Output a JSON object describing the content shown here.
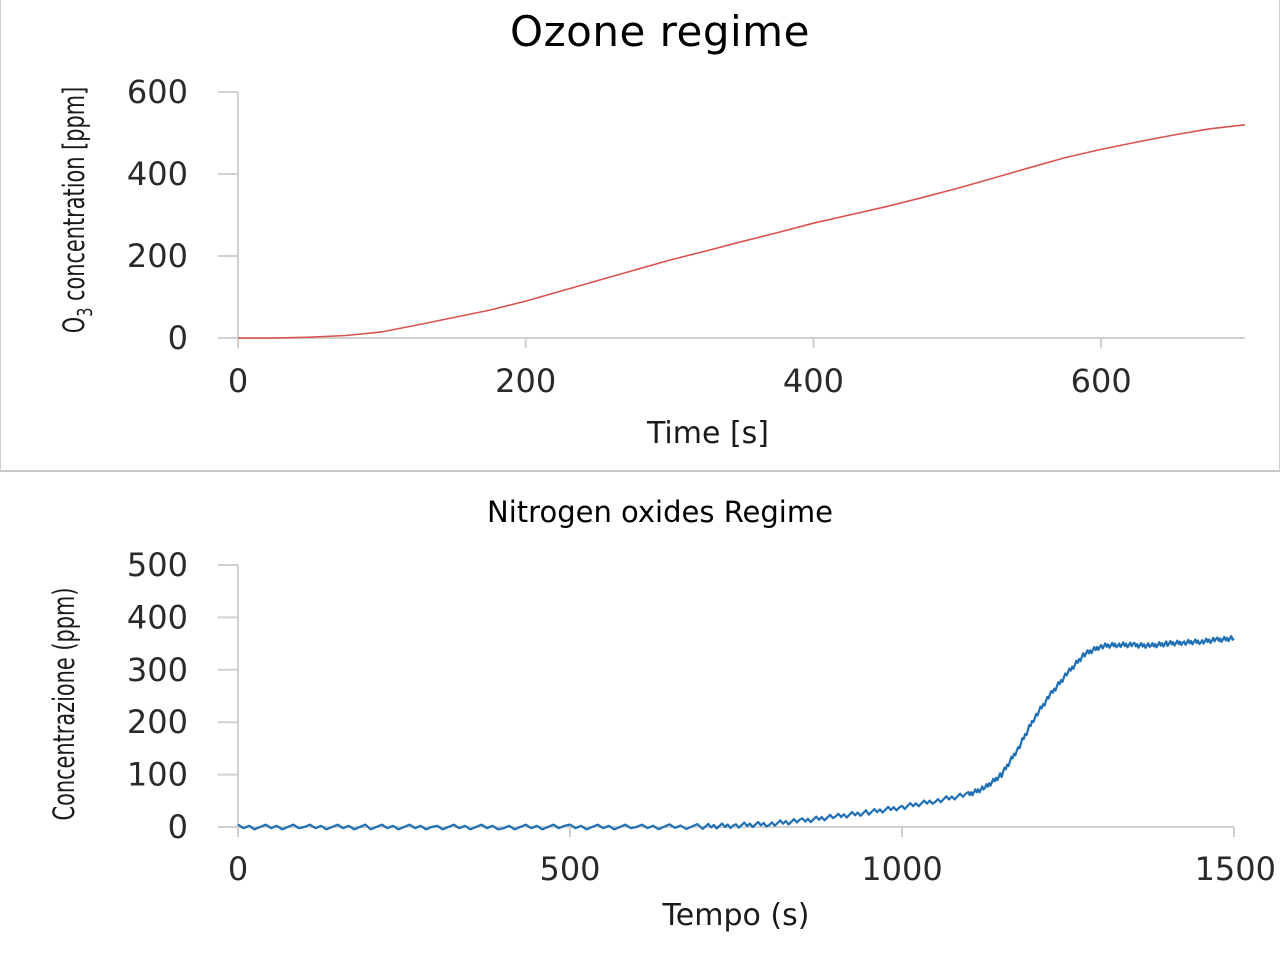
{
  "charts": [
    {
      "id": "ozone",
      "chart_data": {
        "type": "line",
        "title": "Ozone regime",
        "xlabel": "Time [s]",
        "ylabel_main": "O",
        "ylabel_sub": "3",
        "ylabel_rest": " concentration [ppm]",
        "xlim": [
          0,
          700
        ],
        "ylim": [
          0,
          600
        ],
        "xticks": [
          0,
          200,
          400,
          600
        ],
        "yticks": [
          0,
          200,
          400,
          600
        ],
        "grid": false,
        "series": [
          {
            "color": "#d9534f",
            "x": [
              0,
              25,
              50,
              75,
              100,
              125,
              150,
              175,
              200,
              225,
              250,
              275,
              300,
              325,
              350,
              375,
              400,
              425,
              450,
              475,
              500,
              525,
              550,
              575,
              600,
              625,
              650,
              675,
              700
            ],
            "y": [
              0,
              0,
              2,
              6,
              15,
              32,
              50,
              68,
              90,
              115,
              140,
              165,
              190,
              212,
              235,
              257,
              280,
              300,
              320,
              342,
              365,
              390,
              415,
              440,
              460,
              478,
              495,
              510,
              520
            ]
          }
        ]
      }
    },
    {
      "id": "nox",
      "chart_data": {
        "type": "line",
        "title": "Nitrogen oxides Regime",
        "xlabel": "Tempo (s)",
        "ylabel": "Concentrazione (ppm)",
        "xlim": [
          0,
          1500
        ],
        "ylim": [
          0,
          500
        ],
        "xticks": [
          0,
          500,
          1000,
          1500
        ],
        "yticks": [
          0,
          100,
          200,
          300,
          400,
          500
        ],
        "grid": false,
        "series": [
          {
            "color": "#1f6fb5",
            "x": [
              0,
              100,
              200,
              300,
              400,
              500,
              600,
              700,
              750,
              800,
              850,
              900,
              950,
              1000,
              1050,
              1100,
              1125,
              1150,
              1175,
              1200,
              1225,
              1250,
              1275,
              1300,
              1325,
              1350,
              1375,
              1400,
              1425,
              1450,
              1475,
              1500
            ],
            "y": [
              0,
              0,
              0,
              0,
              0,
              0,
              0,
              1,
              3,
              6,
              12,
              20,
              28,
              38,
              50,
              62,
              75,
              100,
              150,
              210,
              255,
              295,
              330,
              345,
              348,
              347,
              346,
              350,
              352,
              354,
              357,
              360
            ]
          }
        ]
      }
    }
  ]
}
